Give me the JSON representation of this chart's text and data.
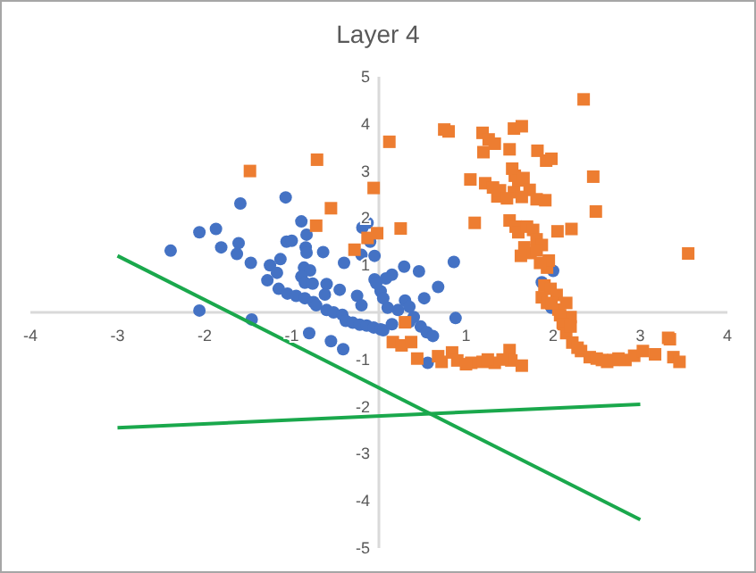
{
  "chart_data": {
    "type": "scatter",
    "title": "Layer 4",
    "xlim": [
      -4,
      4
    ],
    "ylim": [
      -5,
      5
    ],
    "xticks": [
      -4,
      -3,
      -2,
      -1,
      1,
      2,
      3,
      4
    ],
    "yticks": [
      -5,
      -4,
      -3,
      -2,
      -1,
      1,
      2,
      3,
      4,
      5
    ],
    "grid": false,
    "series": [
      {
        "type": "scatter",
        "marker": "circle",
        "color": "#4472c4",
        "x": [
          -2.39,
          -2.06,
          -1.87,
          -1.59,
          -1.81,
          -1.63,
          -1.61,
          -1.47,
          -2.06,
          -1.46,
          -1.07,
          -0.89,
          -1.06,
          -1.0,
          -0.83,
          -0.84,
          -0.83,
          -1.13,
          -1.25,
          -1.28,
          -1.17,
          -1.15,
          -0.86,
          -0.79,
          -0.89,
          -0.85,
          -0.76,
          -0.64,
          -0.6,
          -0.45,
          -0.4,
          -0.19,
          -0.2,
          -1.05,
          -0.95,
          -0.85,
          -0.75,
          -0.62,
          -0.72,
          -0.6,
          -0.52,
          -0.42,
          -0.25,
          -0.2,
          -0.05,
          0.02,
          -0.8,
          -0.55,
          -0.41,
          -0.38,
          -0.3,
          -0.22,
          -0.14,
          -0.06,
          0.02,
          0.05,
          0.15,
          0.35,
          0.48,
          0.55,
          0.62,
          0.56,
          0.88,
          0.86,
          0.68,
          0.46,
          0.29,
          0.15,
          0.08,
          -0.03,
          0.05,
          0.22,
          0.3,
          0.35,
          0.52,
          0.4,
          0.1,
          1.87,
          2.0,
          1.98,
          -0.1,
          -0.13,
          -0.05
        ],
        "values": [
          1.31,
          1.7,
          1.77,
          2.31,
          1.38,
          1.24,
          1.47,
          1.05,
          0.04,
          -0.15,
          2.44,
          1.93,
          1.5,
          1.52,
          1.65,
          1.38,
          1.27,
          1.13,
          1.0,
          0.68,
          0.84,
          0.5,
          0.95,
          0.89,
          0.76,
          0.63,
          0.61,
          1.28,
          0.6,
          0.48,
          1.05,
          1.8,
          1.22,
          0.4,
          0.35,
          0.3,
          0.22,
          0.38,
          0.15,
          0.05,
          0.0,
          -0.05,
          0.35,
          0.15,
          0.7,
          0.45,
          -0.44,
          -0.61,
          -0.78,
          -0.18,
          -0.22,
          -0.26,
          -0.28,
          -0.32,
          -0.36,
          -0.38,
          -0.25,
          -0.2,
          -0.3,
          -0.42,
          -0.5,
          -1.07,
          -0.12,
          1.07,
          0.54,
          0.87,
          0.97,
          0.8,
          0.72,
          0.62,
          0.3,
          0.05,
          0.25,
          0.12,
          0.3,
          -0.1,
          0.1,
          0.64,
          0.88,
          0.1,
          1.5,
          1.9,
          1.2
        ]
      },
      {
        "type": "scatter",
        "marker": "square",
        "color": "#ed7d31",
        "x": [
          2.35,
          0.75,
          0.8,
          1.19,
          1.55,
          1.64,
          0.12,
          1.26,
          1.33,
          1.2,
          1.5,
          1.82,
          1.92,
          1.98,
          2.46,
          2.49,
          1.05,
          1.22,
          1.31,
          1.36,
          1.39,
          1.53,
          1.56,
          1.6,
          1.66,
          1.73,
          1.55,
          1.64,
          1.81,
          1.91,
          1.47,
          1.1,
          1.5,
          1.57,
          1.6,
          1.7,
          1.77,
          1.81,
          1.87,
          1.67,
          1.74,
          1.63,
          1.81,
          2.05,
          2.21,
          3.55,
          1.93,
          1.9,
          1.97,
          2.04,
          1.87,
          1.93,
          2.06,
          2.2,
          0.25,
          -0.02,
          -0.13,
          -0.06,
          3.32,
          -1.48,
          -0.71,
          -0.55,
          -0.72,
          -0.28,
          0.3,
          0.16,
          0.26,
          0.37,
          0.44,
          0.68,
          0.72,
          0.84,
          0.9,
          1.06,
          1.19,
          1.33,
          1.5,
          1.52,
          1.64,
          1.42,
          1.0,
          1.25,
          2.08,
          2.11,
          2.15,
          2.22,
          2.32,
          2.42,
          2.56,
          2.69,
          2.83,
          2.93,
          3.03,
          3.17,
          3.34,
          3.38,
          3.45,
          2.5,
          2.62,
          2.75,
          2.2,
          2.28,
          1.98,
          2.15,
          1.95,
          1.85
        ],
        "values": [
          4.52,
          3.88,
          3.84,
          3.81,
          3.9,
          3.95,
          3.62,
          3.67,
          3.58,
          3.4,
          3.46,
          3.43,
          3.22,
          3.26,
          2.88,
          2.14,
          2.82,
          2.74,
          2.65,
          2.46,
          2.59,
          3.05,
          2.9,
          2.8,
          2.85,
          2.6,
          2.55,
          2.45,
          2.4,
          2.38,
          2.42,
          1.9,
          1.95,
          1.82,
          1.7,
          1.82,
          1.75,
          1.55,
          1.43,
          1.38,
          1.26,
          1.2,
          1.32,
          1.72,
          1.77,
          1.25,
          0.95,
          0.57,
          0.5,
          0.37,
          0.32,
          0.2,
          0.06,
          -0.1,
          1.78,
          1.68,
          1.58,
          2.64,
          -0.54,
          3.0,
          3.24,
          2.21,
          1.84,
          1.33,
          -0.21,
          -0.63,
          -0.7,
          -0.63,
          -0.98,
          -0.93,
          -1.05,
          -0.85,
          -1.02,
          -1.07,
          -1.05,
          -1.07,
          -0.8,
          -1.02,
          -1.13,
          -1.0,
          -1.1,
          -1.0,
          -0.06,
          -0.25,
          -0.44,
          -0.64,
          -0.82,
          -0.95,
          -1.01,
          -1.01,
          -1.01,
          -0.92,
          -0.82,
          -0.89,
          -0.57,
          -0.95,
          -1.05,
          -0.98,
          -1.05,
          -0.98,
          -0.3,
          -0.75,
          0.19,
          0.2,
          1.1,
          1.05
        ]
      },
      {
        "type": "line",
        "marker": "none",
        "color": "#1aa84c",
        "x": [
          -3,
          3
        ],
        "values": [
          1.2,
          -4.4
        ]
      },
      {
        "type": "line",
        "marker": "none",
        "color": "#1aa84c",
        "x": [
          -3,
          3
        ],
        "values": [
          -2.45,
          -1.95
        ]
      }
    ]
  }
}
